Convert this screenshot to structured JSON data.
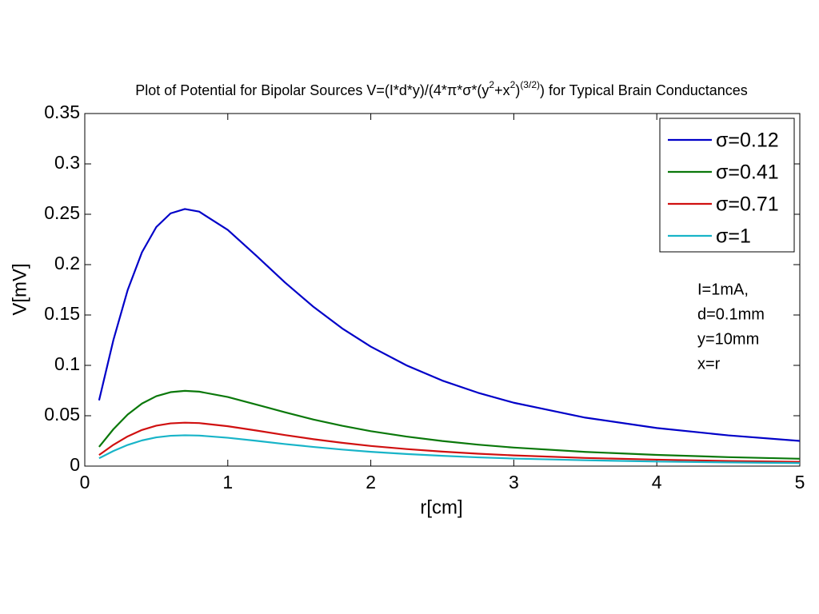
{
  "chart_data": {
    "type": "line",
    "title": [
      "Plot of Potential for Bipolar Sources V=(I*d*y)/(4*π*σ*(y",
      "2",
      "+x",
      "2",
      ")",
      "(3/2)",
      ") for Typical Brain Conductances"
    ],
    "x_label": "r[cm]",
    "y_label": "V[mV]",
    "x": [
      0.1,
      0.2,
      0.3,
      0.4,
      0.5,
      0.6,
      0.7,
      0.8,
      1,
      1.2,
      1.4,
      1.6,
      1.8,
      2,
      2.25,
      2.5,
      2.75,
      3,
      3.5,
      4,
      4.5,
      5
    ],
    "series": [
      {
        "name": "σ=0.12",
        "color": "#0000c8",
        "values": [
          0.0653,
          0.1251,
          0.1748,
          0.2123,
          0.2373,
          0.2509,
          0.2552,
          0.2526,
          0.2345,
          0.2088,
          0.1823,
          0.158,
          0.1367,
          0.1186,
          0.1,
          0.0849,
          0.0728,
          0.0629,
          0.0481,
          0.0378,
          0.0305,
          0.025
        ]
      },
      {
        "name": "σ=0.41",
        "color": "#0a780a",
        "values": [
          0.0191,
          0.0366,
          0.0512,
          0.0621,
          0.0694,
          0.0734,
          0.0747,
          0.0739,
          0.0686,
          0.0611,
          0.0534,
          0.0462,
          0.04,
          0.0347,
          0.0293,
          0.0249,
          0.0213,
          0.0184,
          0.0141,
          0.0111,
          0.0089,
          0.0073
        ]
      },
      {
        "name": "σ=0.71",
        "color": "#d01010",
        "values": [
          0.011,
          0.0211,
          0.0295,
          0.0359,
          0.0401,
          0.0424,
          0.0431,
          0.0427,
          0.0396,
          0.0353,
          0.0308,
          0.0267,
          0.0231,
          0.02,
          0.0169,
          0.0144,
          0.0123,
          0.0106,
          0.0081,
          0.0064,
          0.0051,
          0.0042
        ]
      },
      {
        "name": "σ=1",
        "color": "#18b4c8",
        "values": [
          0.0078,
          0.015,
          0.021,
          0.0255,
          0.0285,
          0.0301,
          0.0306,
          0.0303,
          0.0281,
          0.0251,
          0.0219,
          0.019,
          0.0164,
          0.0142,
          0.012,
          0.0102,
          0.0087,
          0.0075,
          0.0058,
          0.0045,
          0.0037,
          0.003
        ]
      }
    ],
    "xlim": [
      0,
      5
    ],
    "xticks": [
      0,
      1,
      2,
      3,
      4,
      5
    ],
    "ylim": [
      0,
      0.35
    ],
    "yticks": [
      0,
      0.05,
      0.1,
      0.15,
      0.2,
      0.25,
      0.3,
      0.35
    ],
    "grid": false,
    "legend": "upper right",
    "annotation": [
      "I=1mA,",
      "d=0.1mm",
      "y=10mm",
      "x=r"
    ]
  }
}
